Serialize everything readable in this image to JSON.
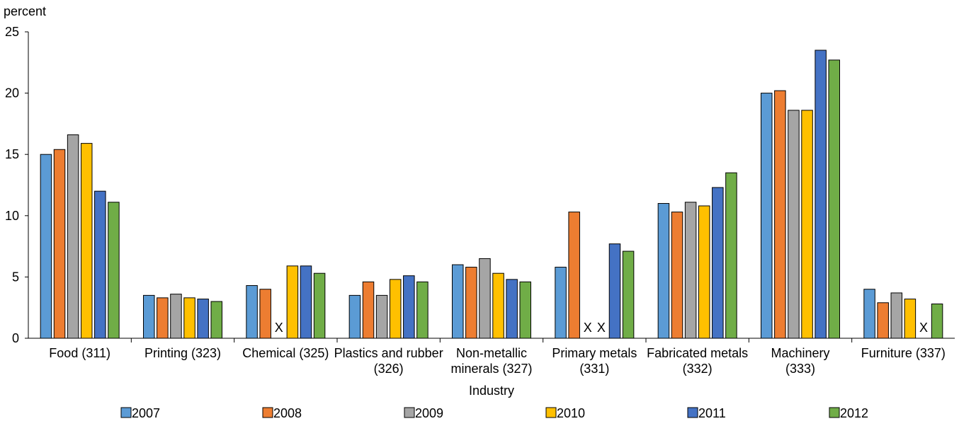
{
  "chart_data": {
    "type": "bar",
    "ylabel": "percent",
    "xlabel": "Industry",
    "ylim": [
      0,
      25
    ],
    "yticks": [
      "0",
      "5",
      "10",
      "15",
      "20",
      "25"
    ],
    "grid": false,
    "legend_position": "bottom",
    "categories": [
      [
        "Food (311)"
      ],
      [
        "Printing (323)"
      ],
      [
        "Chemical (325)"
      ],
      [
        "Plastics and rubber",
        "(326)"
      ],
      [
        "Non-metallic",
        "minerals (327)"
      ],
      [
        "Primary metals",
        "(331)"
      ],
      [
        "Fabricated metals",
        "(332)"
      ],
      [
        "Machinery",
        "(333)"
      ],
      [
        "Furniture (337)"
      ]
    ],
    "missing_marker": "X",
    "series": [
      {
        "name": "2007",
        "color": "#5B9BD5",
        "values": [
          15.0,
          3.5,
          4.3,
          3.5,
          6.0,
          5.8,
          11.0,
          20.0,
          4.0
        ]
      },
      {
        "name": "2008",
        "color": "#ED7D31",
        "values": [
          15.4,
          3.3,
          4.0,
          4.6,
          5.8,
          10.3,
          10.3,
          20.2,
          2.9
        ]
      },
      {
        "name": "2009",
        "color": "#A5A5A5",
        "values": [
          16.6,
          3.6,
          null,
          3.5,
          6.5,
          null,
          11.1,
          18.6,
          3.7
        ]
      },
      {
        "name": "2010",
        "color": "#FFC000",
        "values": [
          15.9,
          3.3,
          5.9,
          4.8,
          5.3,
          null,
          10.8,
          18.6,
          3.2
        ]
      },
      {
        "name": "2011",
        "color": "#4472C4",
        "values": [
          12.0,
          3.2,
          5.9,
          5.1,
          4.8,
          7.7,
          12.3,
          23.5,
          null
        ]
      },
      {
        "name": "2012",
        "color": "#70AD47",
        "values": [
          11.1,
          3.0,
          5.3,
          4.6,
          4.6,
          7.1,
          13.5,
          22.7,
          2.8
        ]
      }
    ]
  }
}
